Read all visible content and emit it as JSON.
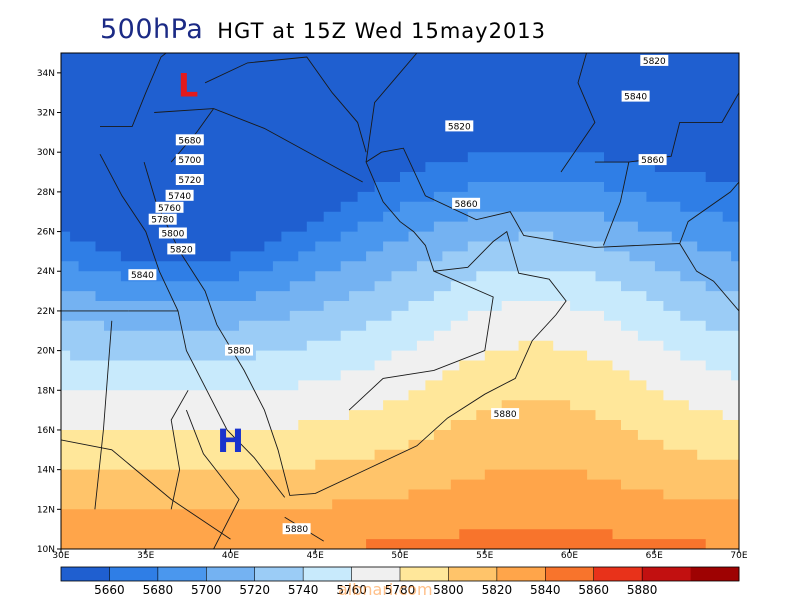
{
  "title": {
    "main": "500hPa",
    "sub": "HGT at 15Z Wed 15may2013"
  },
  "axes": {
    "lon_min": 30,
    "lon_max": 70,
    "lat_min": 10,
    "lat_max": 35,
    "lon_ticks": [
      "30E",
      "35E",
      "40E",
      "45E",
      "50E",
      "55E",
      "60E",
      "65E",
      "70E"
    ],
    "lat_ticks": [
      "10N",
      "12N",
      "14N",
      "16N",
      "18N",
      "20N",
      "22N",
      "24N",
      "26N",
      "28N",
      "30N",
      "32N",
      "34N"
    ]
  },
  "pressure_systems": [
    {
      "label": "L",
      "lon": 37.5,
      "lat": 33.4,
      "color": "#e31a1c"
    },
    {
      "label": "H",
      "lon": 40.0,
      "lat": 15.5,
      "color": "#1a33cc"
    }
  ],
  "contour_labels": [
    {
      "text": "5820",
      "lon": 65.0,
      "lat": 34.6
    },
    {
      "text": "5840",
      "lon": 63.9,
      "lat": 32.8
    },
    {
      "text": "5860",
      "lon": 64.9,
      "lat": 29.6
    },
    {
      "text": "5820",
      "lon": 53.5,
      "lat": 31.3
    },
    {
      "text": "5860",
      "lon": 53.9,
      "lat": 27.4
    },
    {
      "text": "5680",
      "lon": 37.6,
      "lat": 30.6
    },
    {
      "text": "5700",
      "lon": 37.6,
      "lat": 29.6
    },
    {
      "text": "5720",
      "lon": 37.6,
      "lat": 28.6
    },
    {
      "text": "5740",
      "lon": 37.0,
      "lat": 27.8
    },
    {
      "text": "5760",
      "lon": 36.4,
      "lat": 27.2
    },
    {
      "text": "5780",
      "lon": 36.0,
      "lat": 26.6
    },
    {
      "text": "5800",
      "lon": 36.6,
      "lat": 25.9
    },
    {
      "text": "5820",
      "lon": 37.1,
      "lat": 25.1
    },
    {
      "text": "5840",
      "lon": 34.8,
      "lat": 23.8
    },
    {
      "text": "5880",
      "lon": 40.5,
      "lat": 20.0
    },
    {
      "text": "5880",
      "lon": 56.2,
      "lat": 16.8
    },
    {
      "text": "5880",
      "lon": 43.9,
      "lat": 11.0
    }
  ],
  "colorbar": {
    "levels": [
      "5660",
      "5680",
      "5700",
      "5720",
      "5740",
      "5760",
      "5780",
      "5800",
      "5820",
      "5840",
      "5860",
      "5880"
    ],
    "colors": [
      "#1f5fd0",
      "#2f7ee6",
      "#4a97ee",
      "#74b2f2",
      "#9bccf6",
      "#c8eafc",
      "#f0f0f0",
      "#ffe79a",
      "#ffc46a",
      "#ffa54a",
      "#f8742c",
      "#e8321a",
      "#c21010",
      "#9e0202"
    ]
  },
  "bands": [
    {
      "level": 5660,
      "color": "#1f5fd0"
    },
    {
      "level": 5680,
      "color": "#2f7ee6"
    },
    {
      "level": 5700,
      "color": "#4a97ee"
    },
    {
      "level": 5720,
      "color": "#74b2f2"
    },
    {
      "level": 5740,
      "color": "#9bccf6"
    },
    {
      "level": 5760,
      "color": "#c8eafc"
    },
    {
      "level": 5780,
      "color": "#f0f0f0"
    },
    {
      "level": 5800,
      "color": "#ffe79a"
    },
    {
      "level": 5820,
      "color": "#ffc46a"
    },
    {
      "level": 5840,
      "color": "#ffa54a"
    },
    {
      "level": 5860,
      "color": "#f8742c"
    },
    {
      "level": 5880,
      "color": "#e8321a"
    }
  ],
  "watermark": "albnari.com"
}
